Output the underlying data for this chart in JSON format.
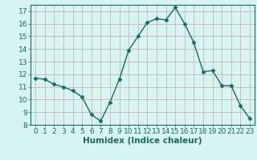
{
  "x": [
    0,
    1,
    2,
    3,
    4,
    5,
    6,
    7,
    8,
    9,
    10,
    11,
    12,
    13,
    14,
    15,
    16,
    17,
    18,
    19,
    20,
    21,
    22,
    23
  ],
  "y": [
    11.7,
    11.6,
    11.2,
    11.0,
    10.7,
    10.2,
    8.8,
    8.3,
    9.8,
    11.6,
    13.9,
    15.0,
    16.1,
    16.4,
    16.3,
    17.3,
    16.0,
    14.5,
    12.2,
    12.3,
    11.1,
    11.1,
    9.5,
    8.5
  ],
  "xlabel": "Humidex (Indice chaleur)",
  "ylim": [
    8,
    17.5
  ],
  "xlim": [
    -0.5,
    23.5
  ],
  "yticks": [
    8,
    9,
    10,
    11,
    12,
    13,
    14,
    15,
    16,
    17
  ],
  "xticks": [
    0,
    1,
    2,
    3,
    4,
    5,
    6,
    7,
    8,
    9,
    10,
    11,
    12,
    13,
    14,
    15,
    16,
    17,
    18,
    19,
    20,
    21,
    22,
    23
  ],
  "line_color": "#1a6b5a",
  "marker": "D",
  "marker_size": 2.5,
  "plot_bg_color": "#d6f5f0",
  "fig_bg_color": "#d6f5f0",
  "grid_color": "#d4b8c0",
  "axis_color": "#1a6b5a",
  "tick_label_color": "#1a6b5a",
  "xlabel_color": "#1a6b5a",
  "xlabel_fontsize": 7.5,
  "tick_fontsize": 6.5
}
